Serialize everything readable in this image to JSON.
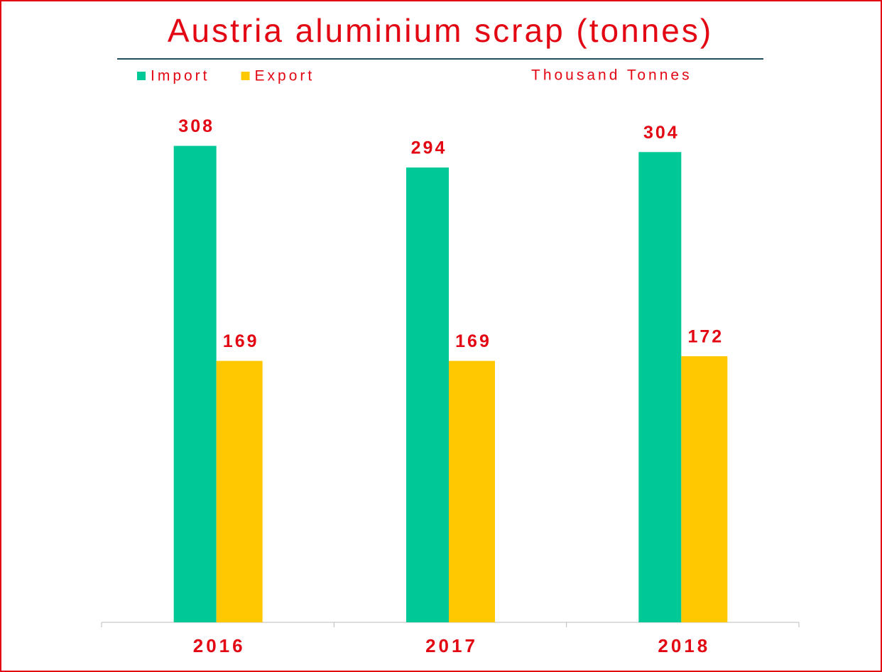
{
  "chart_data": {
    "type": "bar",
    "title": "Austria aluminium scrap (tonnes)",
    "unit_label": "Thousand Tonnes",
    "categories": [
      "2016",
      "2017",
      "2018"
    ],
    "series": [
      {
        "name": "Import",
        "color": "#00c896",
        "values": [
          308,
          294,
          304
        ]
      },
      {
        "name": "Export",
        "color": "#ffc800",
        "values": [
          169,
          169,
          172
        ]
      }
    ],
    "show_value_labels": true,
    "legend": "top-left"
  }
}
